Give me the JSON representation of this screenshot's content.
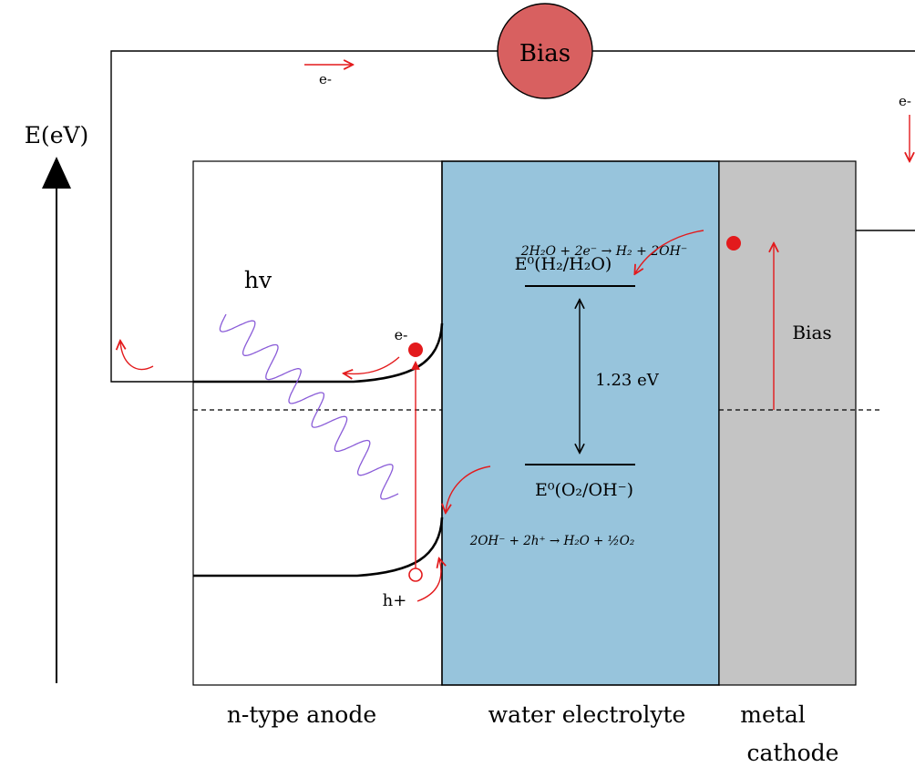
{
  "axis": {
    "label": "E(eV)"
  },
  "bias_source": {
    "label": "Bias"
  },
  "electrons": {
    "circuit_top": "e-",
    "circuit_right": "e-",
    "anode": "e-"
  },
  "photon": {
    "label": "hv"
  },
  "hole": {
    "label": "h+"
  },
  "reduction": {
    "equation": "2H₂O + 2e⁻ → H₂ + 2OH⁻",
    "potential_label": "E⁰(H₂/H₂O)"
  },
  "oxidation": {
    "equation": "2OH⁻ + 2h⁺ → H₂O + ½O₂",
    "potential_label": "E⁰(O₂/OH⁻)"
  },
  "gap": {
    "label": "1.23 eV"
  },
  "cathode_bias": {
    "label": "Bias"
  },
  "regions": {
    "anode": "n-type anode",
    "electrolyte": "water electrolyte",
    "cathode_line1": "metal",
    "cathode_line2": "cathode"
  },
  "colors": {
    "electrolyte": "#97c4dc",
    "cathode": "#c4c4c4",
    "bias_source": "#d86060",
    "accent": "#e31a1c",
    "photon": "#8a5cd8"
  }
}
